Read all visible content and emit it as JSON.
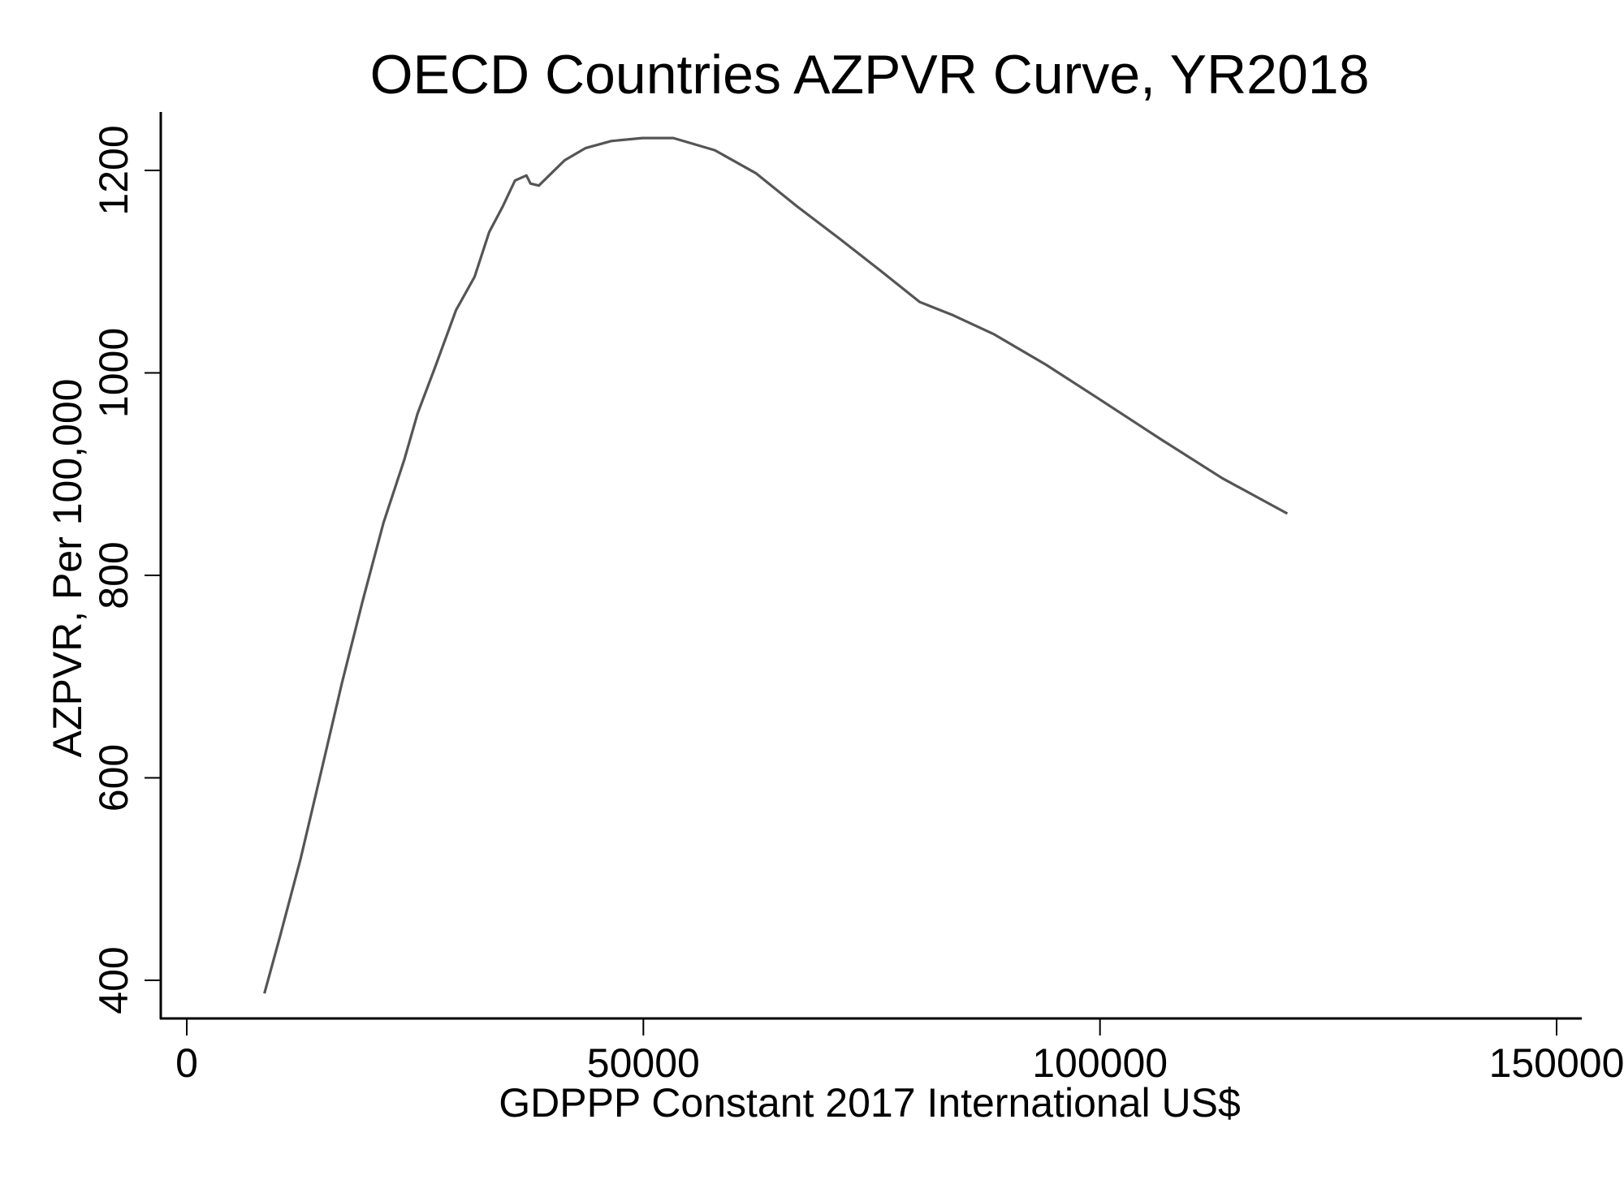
{
  "chart_data": {
    "type": "line",
    "title": "OECD Countries AZPVR Curve, YR2018",
    "xlabel": "GDPPP Constant 2017 International US$",
    "ylabel": "AZPVR, Per 100,000",
    "xlim": [
      0,
      150000
    ],
    "ylim": [
      400,
      1200
    ],
    "xticks": [
      "0",
      "50000",
      "100000",
      "150000"
    ],
    "yticks": [
      "400",
      "600",
      "800",
      "1000",
      "1200"
    ],
    "grid": false,
    "line_color": "#555555",
    "x": [
      8500,
      10200,
      12470,
      14740,
      17000,
      19270,
      21540,
      23810,
      25280,
      27210,
      29480,
      31520,
      33110,
      34580,
      35940,
      37190,
      37640,
      38550,
      39680,
      41380,
      43650,
      46480,
      49890,
      53290,
      57820,
      62360,
      66890,
      71430,
      75960,
      80270,
      83900,
      88430,
      94100,
      99770,
      106570,
      113380,
      120520
    ],
    "y": [
      387,
      443,
      520,
      607,
      694,
      775,
      852,
      914,
      960,
      1006,
      1062,
      1095,
      1139,
      1164,
      1190,
      1195,
      1187,
      1185,
      1195,
      1210,
      1222,
      1229,
      1232,
      1232,
      1220,
      1197,
      1164,
      1133,
      1101,
      1070,
      1057,
      1038,
      1008,
      975,
      935,
      896,
      861
    ]
  }
}
